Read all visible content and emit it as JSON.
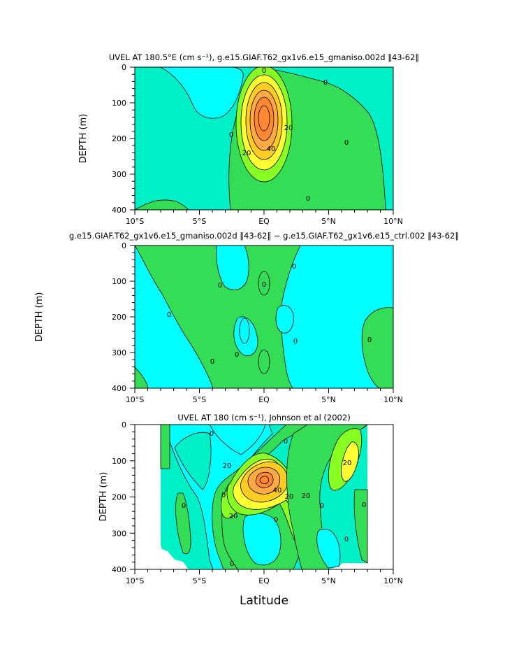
{
  "chart_data": [
    {
      "type": "contour",
      "title": "UVEL AT 180.5°E (cm s⁻¹), g.e15.GIAF.T62_gx1v6.e15_gmaniso.002d ‖43-62‖",
      "ylabel": "DEPTH (m)",
      "xlabel": "",
      "x_ticks": [
        "10°S",
        "5°S",
        "EQ",
        "5°N",
        "10°N"
      ],
      "y_ticks": [
        "0",
        "100",
        "200",
        "300",
        "400"
      ],
      "xlim_deg": [
        -10,
        10
      ],
      "ylim_m": [
        0,
        400
      ],
      "y_reversed": true,
      "contour_labels": [
        "0",
        "0",
        "0",
        "0",
        "0",
        "20",
        "20",
        "40"
      ],
      "feature": {
        "core_lat": 0.0,
        "core_depth_m": 160,
        "core_max_cm_s": 70
      },
      "colors": {
        "background": "#00f0c8",
        "negative": "#00ffff",
        "positive_0_20": "#33dd55",
        "20_30": "#88ff22",
        "30_40": "#ffff33",
        "40_50": "#ffcc22",
        "50_60": "#ffaa44",
        "60_plus": "#ff8833"
      }
    },
    {
      "type": "contour",
      "title": "g.e15.GIAF.T62_gx1v6.e15_gmaniso.002d ‖43-62‖ − g.e15.GIAF.T62_gx1v6.e15_ctrl.002 ‖43-62‖",
      "ylabel": "DEPTH (m)",
      "xlabel": "",
      "x_ticks": [
        "10°S",
        "5°S",
        "EQ",
        "5°N",
        "10°N"
      ],
      "y_ticks": [
        "0",
        "100",
        "200",
        "300",
        "400"
      ],
      "xlim_deg": [
        -10,
        10
      ],
      "ylim_m": [
        0,
        400
      ],
      "y_reversed": true,
      "contour_labels": [
        "0",
        "0",
        "0",
        "0",
        "0",
        "0",
        "0",
        "0"
      ],
      "colors": {
        "negative": "#00ffff",
        "positive": "#33dd55"
      }
    },
    {
      "type": "contour",
      "title": "UVEL AT 180 (cm s⁻¹), Johnson et al (2002)",
      "ylabel": "DEPTH (m)",
      "xlabel": "Latitude",
      "x_ticks": [
        "10°S",
        "5°S",
        "EQ",
        "5°N",
        "10°N"
      ],
      "y_ticks": [
        "0",
        "100",
        "200",
        "300",
        "400"
      ],
      "xlim_deg": [
        -10,
        10
      ],
      "ylim_m": [
        0,
        400
      ],
      "y_reversed": true,
      "data_extent_lat": [
        -8,
        8
      ],
      "contour_labels": [
        "0",
        "0",
        "0",
        "0",
        "0",
        "0",
        "0",
        "0",
        "0",
        "20",
        "20",
        "20",
        "20",
        "20",
        "40"
      ],
      "feature": {
        "core_lat": 0.3,
        "core_depth_m": 175,
        "core_max_cm_s": 70
      },
      "colors": {
        "background": "#00f0c8",
        "negative": "#00ffff",
        "positive_0_20": "#33dd55",
        "20_30": "#88ff22",
        "30_40": "#ffff33",
        "40_50": "#ffcc22",
        "50_60": "#ffaa44",
        "60_plus": "#ff8833"
      }
    }
  ],
  "panels": [
    {
      "title": "UVEL AT 180.5°E (cm s⁻¹), g.e15.GIAF.T62_gx1v6.e15_gmaniso.002d ‖43-62‖",
      "ylabel": "DEPTH (m)"
    },
    {
      "title": "g.e15.GIAF.T62_gx1v6.e15_gmaniso.002d ‖43-62‖ − g.e15.GIAF.T62_gx1v6.e15_ctrl.002 ‖43-62‖",
      "ylabel": "DEPTH (m)"
    },
    {
      "title": "UVEL AT 180 (cm s⁻¹), Johnson et al (2002)",
      "ylabel": "DEPTH (m)",
      "xlabel": "Latitude"
    }
  ]
}
